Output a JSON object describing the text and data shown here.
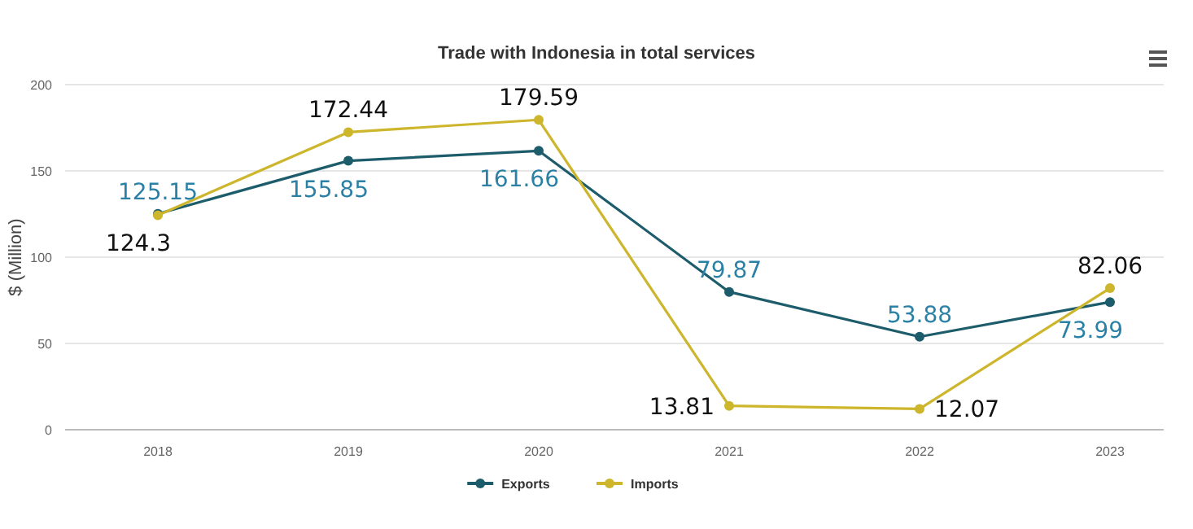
{
  "chart_data": {
    "type": "line",
    "title": "Trade with Indonesia in total services",
    "ylabel": "$ (Million)",
    "categories": [
      "2018",
      "2019",
      "2020",
      "2021",
      "2022",
      "2023"
    ],
    "series": [
      {
        "name": "Exports",
        "color": "#1d5c6b",
        "values": [
          125.15,
          155.85,
          161.66,
          79.87,
          53.88,
          73.99
        ]
      },
      {
        "name": "Imports",
        "color": "#cdb52c",
        "values": [
          124.3,
          172.44,
          179.59,
          13.81,
          12.07,
          82.06
        ]
      }
    ],
    "ylim": [
      0,
      200
    ],
    "yticks": [
      0,
      50,
      100,
      150,
      200
    ],
    "grid": "y",
    "legend": "bottom",
    "marker": "circle",
    "line_style": "solid",
    "data_labels": true
  }
}
